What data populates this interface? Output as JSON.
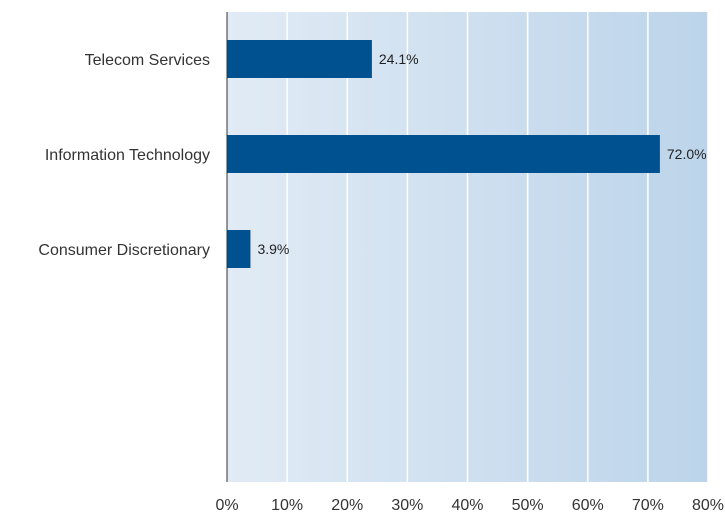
{
  "chart_data": {
    "type": "bar",
    "orientation": "horizontal",
    "categories": [
      "Telecom Services",
      "Information Technology",
      "Consumer Discretionary"
    ],
    "values": [
      24.1,
      72.0,
      3.9
    ],
    "data_labels": [
      "24.1%",
      "72.0%",
      "3.9%"
    ],
    "xlim": [
      0,
      80
    ],
    "x_ticks": [
      0,
      10,
      20,
      30,
      40,
      50,
      60,
      70,
      80
    ],
    "x_tick_labels": [
      "0%",
      "10%",
      "20%",
      "30%",
      "40%",
      "50%",
      "60%",
      "70%",
      "80%"
    ],
    "grid": true,
    "legend": "none",
    "title": "",
    "xlabel": "",
    "ylabel": ""
  },
  "colors": {
    "bar": "#00518f",
    "background_light": "#e1ebf5",
    "background_dark": "#bcd4ea",
    "gridline": "#ffffff",
    "axis": "#333333"
  }
}
